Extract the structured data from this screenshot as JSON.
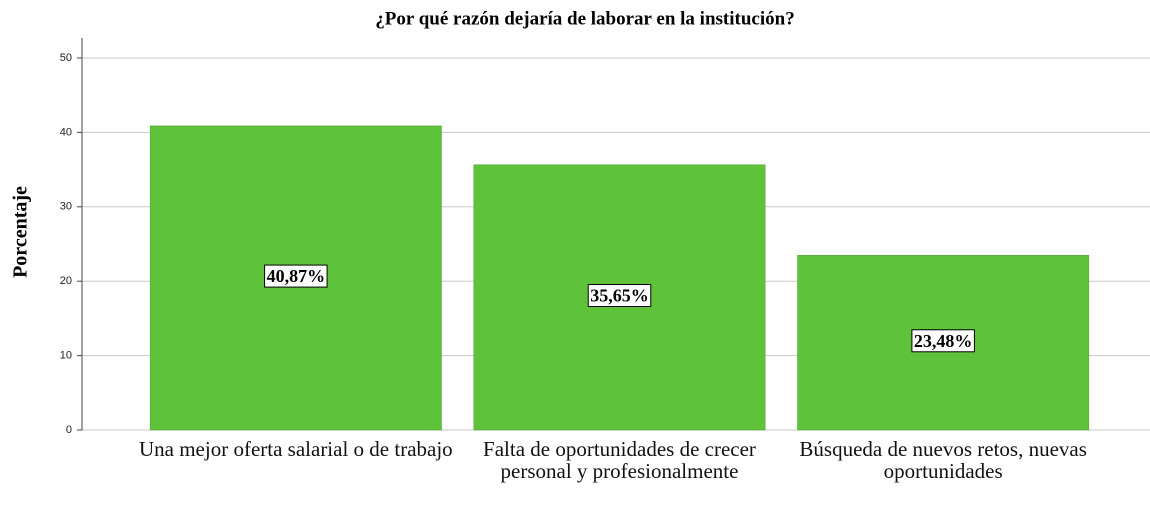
{
  "chart_data": {
    "type": "bar",
    "title": "¿Por qué razón dejaría de laborar en la institución?",
    "ylabel": "Porcentaje",
    "categories": [
      "Una mejor oferta salarial o de trabajo",
      "Falta de oportunidades de crecer personal y profesionalmente",
      "Búsqueda de nuevos retos, nuevas oportunidades"
    ],
    "values": [
      40.87,
      35.65,
      23.48
    ],
    "value_labels": [
      "40,87%",
      "35,65%",
      "23,48%"
    ],
    "color": "#5fc23b",
    "ylim": [
      0,
      50
    ],
    "yticks": [
      0,
      10,
      20,
      30,
      40,
      50
    ],
    "grid": true
  }
}
